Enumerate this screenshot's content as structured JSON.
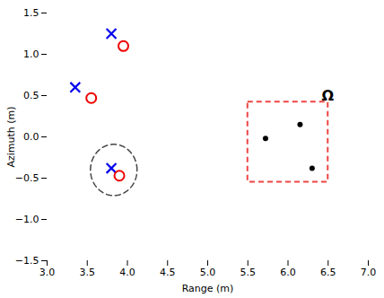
{
  "chart_data": {
    "type": "scatter",
    "xlabel": "Range (m)",
    "ylabel": "Azimuth (m)",
    "xlim": [
      3.0,
      7.0
    ],
    "ylim": [
      -1.5,
      1.5
    ],
    "xticks": [
      {
        "value": 3,
        "label": "3.0"
      },
      3.5,
      {
        "value": 4,
        "label": "4.0"
      },
      4.5,
      {
        "value": 5,
        "label": "5.0"
      },
      5.5,
      {
        "value": 6,
        "label": "6.0"
      },
      6.5,
      {
        "value": 7,
        "label": "7.0"
      }
    ],
    "yticks": [
      -1.5,
      {
        "value": -1.0,
        "label": "−1.0"
      },
      -0.5,
      {
        "value": 0,
        "label": "0.0"
      },
      0.5,
      {
        "value": 1.0,
        "label": "1.0"
      },
      1.5
    ],
    "grid": false,
    "series": [
      {
        "color": "#0000EE",
        "marker": "x",
        "values": [
          [
            3.35,
            0.6
          ],
          [
            3.8,
            1.25
          ],
          [
            3.8,
            -0.38
          ]
        ]
      },
      {
        "color": "#EE0000",
        "marker": "circle",
        "values": [
          [
            3.55,
            0.47
          ],
          [
            3.95,
            1.1
          ],
          [
            3.9,
            -0.47
          ]
        ]
      },
      {
        "color": "#000000",
        "marker": "dot",
        "values": [
          [
            5.72,
            -0.02
          ],
          [
            6.15,
            0.15
          ],
          [
            6.3,
            -0.38
          ]
        ]
      }
    ],
    "shapes": [
      {
        "type": "ellipse",
        "center": [
          3.83,
          -0.4
        ],
        "width": 0.58,
        "height": 0.62,
        "color": "#444444",
        "line_style": "dashed"
      },
      {
        "type": "rectangle",
        "x": 5.5,
        "y": -0.55,
        "width": 1.0,
        "height": 0.97,
        "color": "#EE4444",
        "line_style": "dashed"
      }
    ],
    "annotations": [
      {
        "text": "Ω",
        "x": 6.42,
        "y": 0.44,
        "color": "#000000"
      }
    ]
  }
}
